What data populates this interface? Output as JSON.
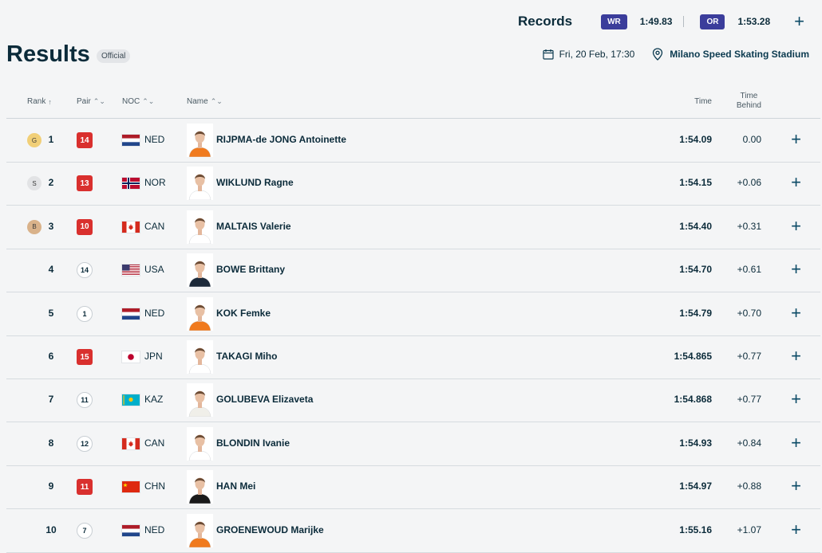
{
  "records": {
    "label": "Records",
    "wr_label": "WR",
    "wr_time": "1:49.83",
    "or_label": "OR",
    "or_time": "1:53.28",
    "expand": "+"
  },
  "header": {
    "title": "Results",
    "status": "Official",
    "date": "Fri, 20 Feb, 17:30",
    "venue": "Milano Speed Skating Stadium"
  },
  "columns": {
    "rank": "Rank",
    "rank_sort": "↑",
    "pair": "Pair",
    "noc": "NOC",
    "name": "Name",
    "sort": "⌃⌄",
    "time": "Time",
    "time_behind_1": "Time",
    "time_behind_2": "Behind"
  },
  "rows": [
    {
      "medal": "G",
      "rank": "1",
      "pair": "14",
      "noc": "NED",
      "name": "RIJPMA-de JONG Antoinette",
      "time": "1:54.09",
      "behind": "0.00",
      "expand": "+"
    },
    {
      "medal": "S",
      "rank": "2",
      "pair": "13",
      "noc": "NOR",
      "name": "WIKLUND Ragne",
      "time": "1:54.15",
      "behind": "+0.06",
      "expand": "+"
    },
    {
      "medal": "B",
      "rank": "3",
      "pair": "10",
      "noc": "CAN",
      "name": "MALTAIS Valerie",
      "time": "1:54.40",
      "behind": "+0.31",
      "expand": "+"
    },
    {
      "medal": "",
      "rank": "4",
      "pair": "14",
      "noc": "USA",
      "name": "BOWE Brittany",
      "time": "1:54.70",
      "behind": "+0.61",
      "expand": "+"
    },
    {
      "medal": "",
      "rank": "5",
      "pair": "1",
      "noc": "NED",
      "name": "KOK Femke",
      "time": "1:54.79",
      "behind": "+0.70",
      "expand": "+"
    },
    {
      "medal": "",
      "rank": "6",
      "pair": "15",
      "noc": "JPN",
      "name": "TAKAGI Miho",
      "time": "1:54.865",
      "behind": "+0.77",
      "expand": "+"
    },
    {
      "medal": "",
      "rank": "7",
      "pair": "11",
      "noc": "KAZ",
      "name": "GOLUBEVA Elizaveta",
      "time": "1:54.868",
      "behind": "+0.77",
      "expand": "+"
    },
    {
      "medal": "",
      "rank": "8",
      "pair": "12",
      "noc": "CAN",
      "name": "BLONDIN Ivanie",
      "time": "1:54.93",
      "behind": "+0.84",
      "expand": "+"
    },
    {
      "medal": "",
      "rank": "9",
      "pair": "11",
      "noc": "CHN",
      "name": "HAN Mei",
      "time": "1:54.97",
      "behind": "+0.88",
      "expand": "+"
    },
    {
      "medal": "",
      "rank": "10",
      "pair": "7",
      "noc": "NED",
      "name": "GROENEWOUD Marijke",
      "time": "1:55.16",
      "behind": "+1.07",
      "expand": "+"
    }
  ],
  "pair_styles": [
    "red",
    "red",
    "red",
    "white",
    "white",
    "red",
    "white",
    "white",
    "red",
    "white"
  ],
  "photo_colors": [
    "#f07a1e",
    "#ffffff",
    "#ffffff",
    "#1d2a3a",
    "#f07a1e",
    "#ffffff",
    "#f0efe9",
    "#ffffff",
    "#1a1a1a",
    "#f07a1e"
  ],
  "colors": {
    "accent": "#3b3d9b",
    "pair_red": "#d9302e",
    "gold": "#f1cf77",
    "silver": "#e2e3e5",
    "bronze": "#d9b28a",
    "text": "#0b2b3a"
  }
}
